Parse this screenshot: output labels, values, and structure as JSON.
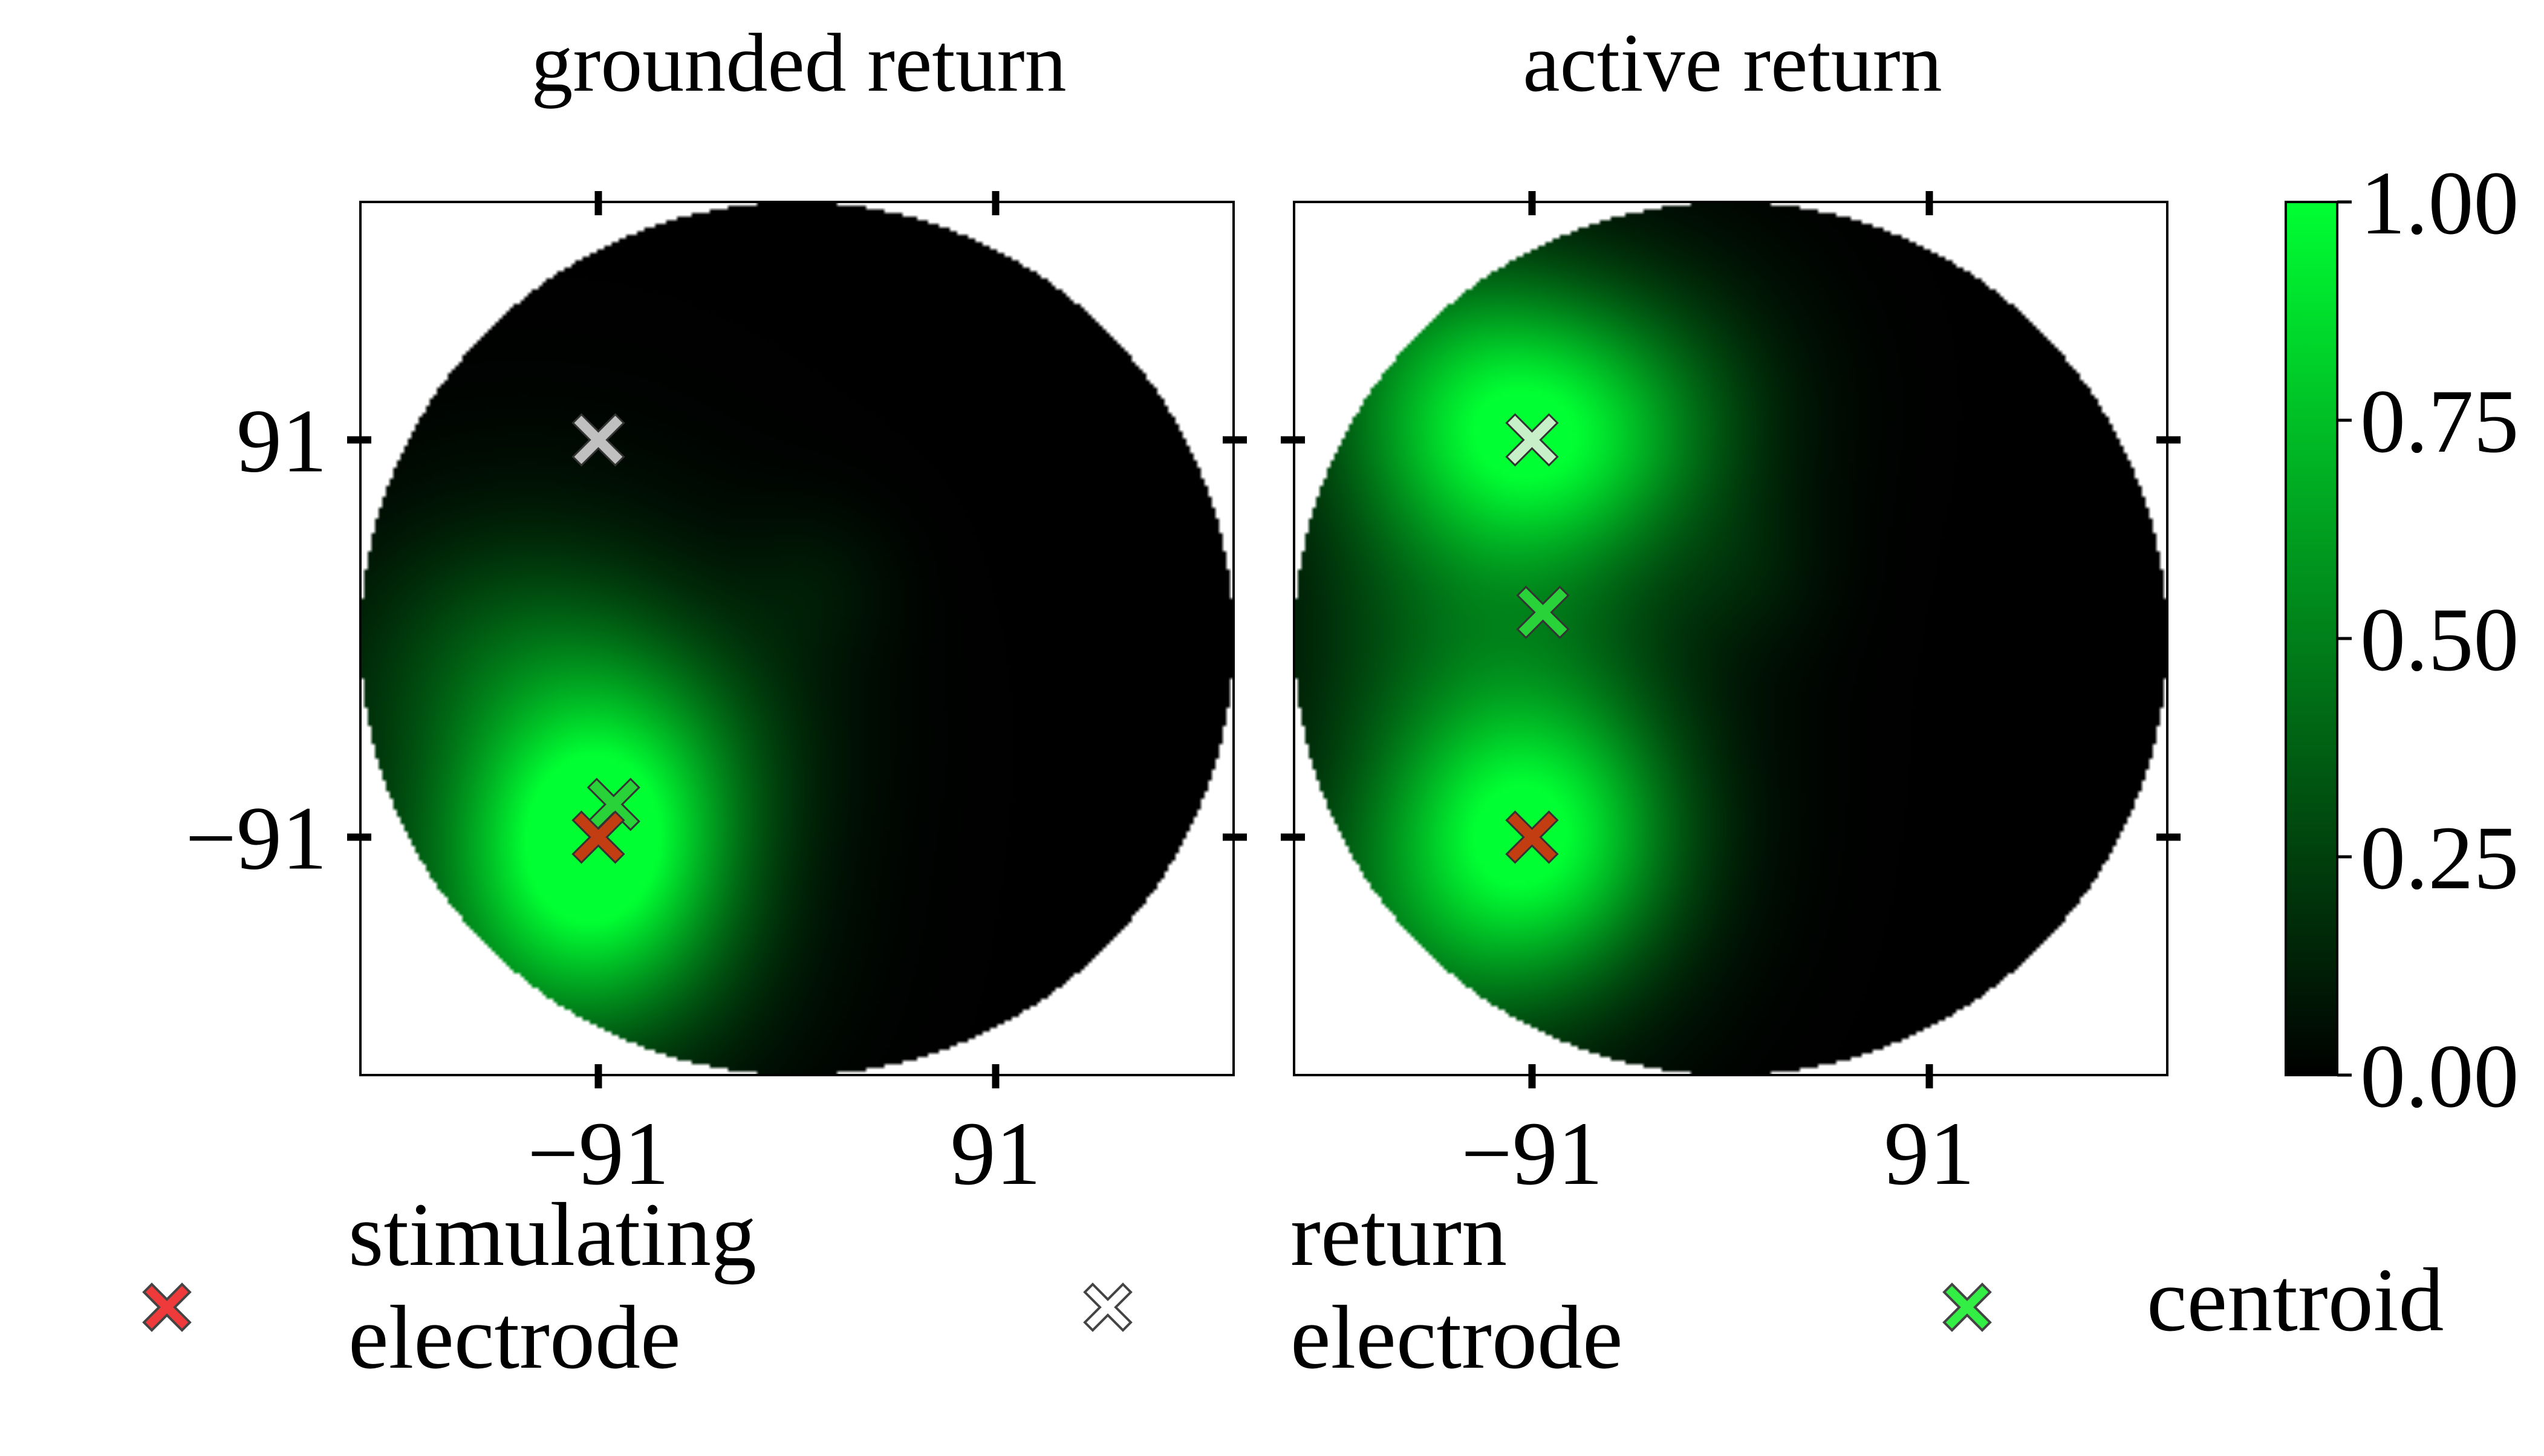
{
  "chart_data": {
    "type": "heatmap",
    "colormap": {
      "low_color": "#000000",
      "high_color": "#00ff33"
    },
    "colorbar": {
      "min": 0.0,
      "max": 1.0,
      "ticks": [
        "0.00",
        "0.25",
        "0.50",
        "0.75",
        "1.00"
      ]
    },
    "axes": {
      "xlim": [
        -200,
        200
      ],
      "ylim": [
        -200,
        200
      ],
      "aperture_radius": 200,
      "ticks": [
        -91,
        91
      ],
      "tick_labels": [
        "−91",
        "91"
      ]
    },
    "panels": [
      {
        "title": "grounded return",
        "show_y_labels": true,
        "blobs": [
          {
            "x": -91,
            "y": -91,
            "sx": 42,
            "sy": 48,
            "amp": 0.92
          },
          {
            "x": -125,
            "y": -50,
            "sx": 70,
            "sy": 70,
            "amp": 0.25
          },
          {
            "x": -110,
            "y": -150,
            "sx": 60,
            "sy": 45,
            "amp": 0.25
          },
          {
            "x": -130,
            "y": 0,
            "sx": 45,
            "sy": 35,
            "amp": 0.12
          },
          {
            "x": 10,
            "y": 25,
            "sx": 25,
            "sy": 25,
            "amp": 0.07
          },
          {
            "x": -45,
            "y": -40,
            "sx": 45,
            "sy": 40,
            "amp": 0.1
          }
        ],
        "markers": {
          "stimulating": {
            "x": -91,
            "y": -91
          },
          "return": {
            "x": -91,
            "y": 91
          },
          "centroid": {
            "x": -84,
            "y": -76
          }
        }
      },
      {
        "title": "active return",
        "show_y_labels": false,
        "blobs": [
          {
            "x": -91,
            "y": 91,
            "sx": 52,
            "sy": 40,
            "amp": 0.78
          },
          {
            "x": -91,
            "y": -91,
            "sx": 45,
            "sy": 45,
            "amp": 0.82
          },
          {
            "x": -110,
            "y": 0,
            "sx": 60,
            "sy": 75,
            "amp": 0.35
          },
          {
            "x": -140,
            "y": -140,
            "sx": 60,
            "sy": 50,
            "amp": 0.25
          },
          {
            "x": -125,
            "y": 140,
            "sx": 50,
            "sy": 40,
            "amp": 0.28
          },
          {
            "x": -30,
            "y": 120,
            "sx": 45,
            "sy": 45,
            "amp": 0.12
          },
          {
            "x": 10,
            "y": 30,
            "sx": 25,
            "sy": 25,
            "amp": 0.07
          }
        ],
        "markers": {
          "stimulating": {
            "x": -91,
            "y": -91
          },
          "return": {
            "x": -91,
            "y": 91
          },
          "centroid": {
            "x": -86,
            "y": 12
          }
        }
      }
    ],
    "legend": {
      "placement": "bottom",
      "entries": [
        {
          "key": "stimulating",
          "lines": [
            "stimulating",
            "electrode"
          ],
          "color": "#ee3a3a"
        },
        {
          "key": "return",
          "lines": [
            "return",
            "electrode"
          ],
          "color": "#ffffff"
        },
        {
          "key": "centroid",
          "lines": [
            "centroid"
          ],
          "color": "#33ee44"
        }
      ]
    },
    "marker_colors": {
      "stimulating_on_plot": "#c23e12",
      "return_on_plot": "#c0c0c0",
      "return_on_plot_active": "#c8f0c8",
      "centroid_on_plot": "#2ad23a"
    }
  }
}
